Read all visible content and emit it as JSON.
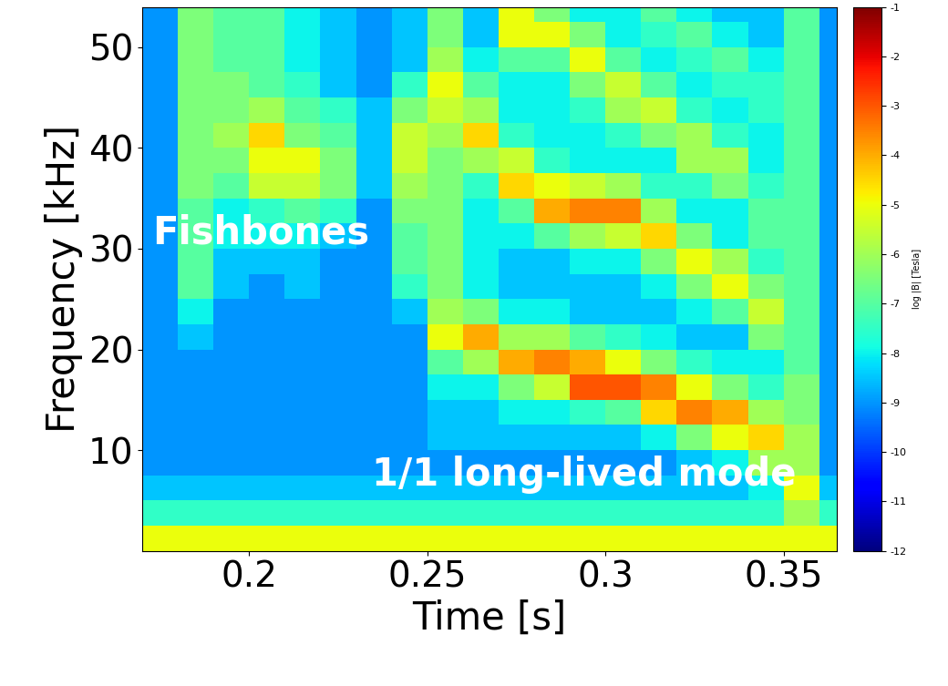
{
  "chart_data": {
    "type": "heatmap",
    "x_label": "Time [s]",
    "y_label": "Frequency [kHz]",
    "colorbar_label": "log |B| [Tesla]",
    "annotations": [
      "Fishbones",
      "1/1 long-lived mode"
    ],
    "x_bins": [
      0.17,
      0.18,
      0.19,
      0.2,
      0.21,
      0.22,
      0.23,
      0.24,
      0.25,
      0.26,
      0.27,
      0.28,
      0.29,
      0.3,
      0.31,
      0.32,
      0.33,
      0.34,
      0.35,
      0.36,
      0.365
    ],
    "y_bins": [
      0,
      2.5,
      5,
      7.5,
      10,
      12.5,
      15,
      17.5,
      20,
      22.5,
      25,
      27.5,
      30,
      32.5,
      35,
      37.5,
      40,
      42.5,
      45,
      47.5,
      50,
      52.5,
      55
    ],
    "values": [
      [
        -5,
        -7.5,
        -8.5,
        -9,
        -9,
        -9,
        -9,
        -9,
        -9,
        -9,
        -9,
        -9,
        -9,
        -9,
        -9,
        -9,
        -9,
        -9,
        -9,
        -9,
        -9,
        -9
      ],
      [
        -5,
        -7.5,
        -8.5,
        -9,
        -9,
        -9,
        -9,
        -9,
        -8.5,
        -8,
        -7,
        -7,
        -7,
        -7,
        -6.5,
        -6.5,
        -6.5,
        -6.5,
        -6.5,
        -6.5,
        -6.5,
        -6.5
      ],
      [
        -5,
        -7.5,
        -8.5,
        -9,
        -9,
        -9,
        -9,
        -9,
        -9,
        -9,
        -8.5,
        -8.5,
        -8,
        -8,
        -7,
        -6.5,
        -6,
        -6.5,
        -6.5,
        -7,
        -7,
        -7
      ],
      [
        -5,
        -7.5,
        -8.5,
        -9,
        -9,
        -9,
        -9,
        -9,
        -9,
        -9,
        -9,
        -8.5,
        -8,
        -7.5,
        -5.5,
        -5,
        -4.5,
        -6,
        -7,
        -7,
        -7,
        -7
      ],
      [
        -5,
        -7.5,
        -8.5,
        -9,
        -9,
        -9,
        -9,
        -9,
        -9,
        -9,
        -8.5,
        -8.5,
        -8,
        -7,
        -5.5,
        -5,
        -6.5,
        -7,
        -7.5,
        -8,
        -8,
        -8
      ],
      [
        -5,
        -7.5,
        -8.5,
        -9,
        -9,
        -9,
        -9,
        -9,
        -9,
        -9,
        -9,
        -9,
        -8.5,
        -7.5,
        -6.5,
        -6.5,
        -7,
        -7.5,
        -8.5,
        -8.5,
        -8.5,
        -8.5
      ],
      [
        -5,
        -7.5,
        -8.5,
        -9,
        -9,
        -9,
        -9,
        -9,
        -9,
        -9,
        -9,
        -9,
        -9,
        -9,
        -8.5,
        -8.5,
        -8.5,
        -8.5,
        -9,
        -9,
        -9,
        -9
      ],
      [
        -5,
        -7.5,
        -8.5,
        -9,
        -9,
        -9,
        -9,
        -9,
        -9,
        -8.5,
        -7.5,
        -7,
        -7,
        -6.5,
        -6,
        -5.5,
        -5.5,
        -6.5,
        -7.5,
        -8.5,
        -8.5,
        -8.5
      ],
      [
        -5,
        -7.5,
        -8.5,
        -9,
        -8.5,
        -8.5,
        -8,
        -7,
        -5,
        -6,
        -6.5,
        -6.5,
        -6.5,
        -6.5,
        -6.5,
        -6.5,
        -6,
        -5.5,
        -5,
        -6,
        -6.5,
        -6.5
      ],
      [
        -5,
        -7.5,
        -8.5,
        -9,
        -8.5,
        -8.5,
        -8,
        -6,
        -4,
        -6.5,
        -8,
        -8,
        -8,
        -8,
        -7.5,
        -6,
        -4.5,
        -6,
        -7,
        -8,
        -8.5,
        -8.5
      ],
      [
        -5,
        -7.5,
        -8.5,
        -9,
        -8.5,
        -8,
        -6.5,
        -4,
        -6,
        -8,
        -8.5,
        -8.5,
        -8,
        -7,
        -4.5,
        -5.5,
        -7.5,
        -8,
        -8,
        -7,
        -5,
        -5
      ],
      [
        -5,
        -7.5,
        -8.5,
        -9,
        -8.5,
        -8,
        -5.5,
        -3.5,
        -6,
        -8,
        -8.5,
        -8.5,
        -7,
        -4,
        -5,
        -7.5,
        -8,
        -8,
        -8,
        -7,
        -5,
        -6.5
      ],
      [
        -5,
        -7.5,
        -8.5,
        -9,
        -8.5,
        -7.5,
        -3,
        -4,
        -7,
        -8.5,
        -8.5,
        -8,
        -6,
        -3.5,
        -5.5,
        -8,
        -8,
        -7.5,
        -6.5,
        -5,
        -6.5,
        -8
      ],
      [
        -5,
        -7.5,
        -8.5,
        -9,
        -8.5,
        -7,
        -3,
        -5,
        -7.5,
        -8.5,
        -8.5,
        -8,
        -5.5,
        -3.5,
        -6,
        -8,
        -7.5,
        -6,
        -5.5,
        -7,
        -8,
        -8
      ],
      [
        -5,
        -7.5,
        -8.5,
        -9,
        -8,
        -4.5,
        -3.5,
        -6.5,
        -8,
        -8.5,
        -8,
        -6.5,
        -4.5,
        -6,
        -7.5,
        -8,
        -6.5,
        -5.5,
        -7,
        -8,
        -7.5,
        -7
      ],
      [
        -5,
        -7.5,
        -8.5,
        -8.5,
        -6.5,
        -3.5,
        -5,
        -7.5,
        -8.5,
        -8,
        -6.5,
        -5,
        -6.5,
        -8,
        -7.5,
        -6,
        -6,
        -7.5,
        -8,
        -7.5,
        -7,
        -8
      ],
      [
        -5,
        -7.5,
        -8.5,
        -8,
        -5,
        -4,
        -6.5,
        -8,
        -8.5,
        -7,
        -5,
        -6,
        -8,
        -8,
        -6.5,
        -6,
        -7.5,
        -8,
        -7.5,
        -7,
        -8,
        -8.5
      ],
      [
        -5,
        -7.5,
        -8,
        -6,
        -4.5,
        -6,
        -7.5,
        -8,
        -6.5,
        -5.5,
        -6.5,
        -7.5,
        -7,
        -7,
        -7.5,
        -8,
        -8,
        -7.5,
        -7.5,
        -8,
        -8.5,
        -8.5
      ],
      [
        -5,
        -6,
        -5,
        -6,
        -6,
        -6.5,
        -6.5,
        -7,
        -7,
        -7,
        -7,
        -7,
        -7,
        -7,
        -7,
        -7,
        -7,
        -7,
        -7,
        -7,
        -7,
        -7
      ],
      [
        -5,
        -7.5,
        -8.5,
        -9,
        -9,
        -9,
        -9,
        -9,
        -9,
        -9,
        -9,
        -9,
        -9,
        -9,
        -9,
        -9,
        -9,
        -9,
        -9,
        -9,
        -9,
        -9
      ]
    ],
    "xlim": [
      0.17,
      0.365
    ],
    "ylim": [
      0,
      54
    ],
    "xticks": [
      0.2,
      0.25,
      0.3,
      0.35
    ],
    "yticks": [
      10,
      20,
      30,
      40,
      50
    ],
    "colorbar_range": [
      -12,
      -1
    ],
    "colorbar_ticks": [
      -1,
      -2,
      -3,
      -4,
      -5,
      -6,
      -7,
      -8,
      -9,
      -10,
      -11,
      -12
    ]
  }
}
